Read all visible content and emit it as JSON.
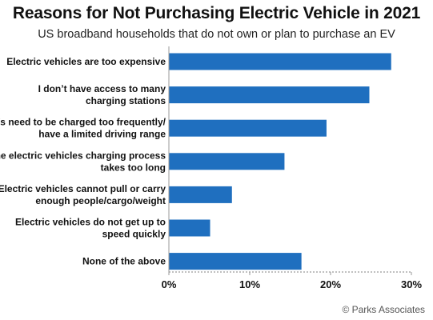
{
  "chart_data": {
    "type": "bar",
    "orientation": "horizontal",
    "title": "Reasons for Not Purchasing Electric Vehicle in 2021",
    "subtitle": "US broadband households that do not own or plan to purchase an EV",
    "categories": [
      [
        "Electric vehicles are too expensive"
      ],
      [
        "I don’t have access to many",
        "charging stations"
      ],
      [
        "EVs need to be charged too frequently/",
        "have a limited driving range"
      ],
      [
        "The electric vehicles charging process",
        "takes too long"
      ],
      [
        "Electric vehicles cannot pull or carry",
        "enough people/cargo/weight"
      ],
      [
        "Electric vehicles do not get up to",
        "speed quickly"
      ],
      [
        "None of the above"
      ]
    ],
    "values": [
      27.5,
      24.8,
      19.5,
      14.3,
      7.8,
      5.1,
      16.4
    ],
    "xlim": [
      0,
      30
    ],
    "ticks": [
      0,
      10,
      20,
      30
    ],
    "tick_labels": [
      "0%",
      "10%",
      "20%",
      "30%"
    ],
    "xlabel": "",
    "ylabel": "",
    "bar_color": "#1f6fbf",
    "grid": false,
    "legend": "none"
  },
  "source": "© Parks Associates"
}
